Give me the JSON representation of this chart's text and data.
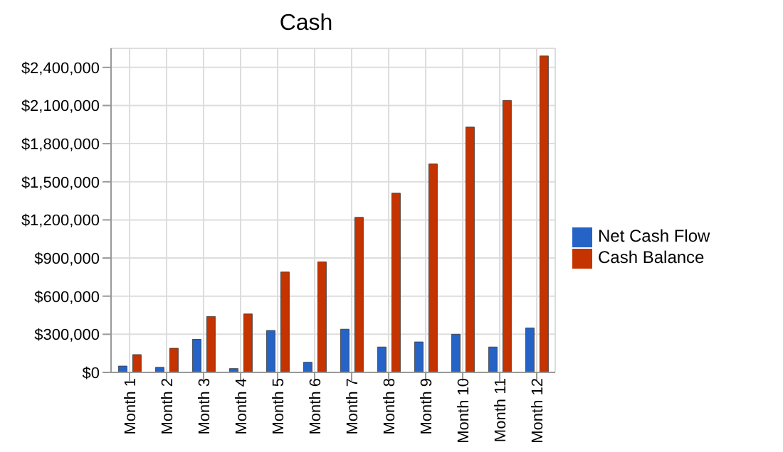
{
  "chart_data": {
    "type": "bar",
    "title": "Cash",
    "categories": [
      "Month 1",
      "Month 2",
      "Month 3",
      "Month 4",
      "Month 5",
      "Month 6",
      "Month 7",
      "Month 8",
      "Month 9",
      "Month 10",
      "Month 11",
      "Month 12"
    ],
    "series": [
      {
        "name": "Net Cash Flow",
        "color": "#2563c6",
        "values": [
          50000,
          40000,
          260000,
          30000,
          330000,
          80000,
          340000,
          200000,
          240000,
          300000,
          200000,
          350000
        ]
      },
      {
        "name": "Cash Balance",
        "color": "#c43300",
        "values": [
          140000,
          190000,
          440000,
          460000,
          790000,
          870000,
          1220000,
          1410000,
          1640000,
          1930000,
          2140000,
          2490000
        ]
      }
    ],
    "ylim": [
      0,
      2550000
    ],
    "yticks": [
      {
        "value": 0,
        "label": "$0"
      },
      {
        "value": 300000,
        "label": "$300,000"
      },
      {
        "value": 600000,
        "label": "$600,000"
      },
      {
        "value": 900000,
        "label": "$900,000"
      },
      {
        "value": 1200000,
        "label": "$1,200,000"
      },
      {
        "value": 1500000,
        "label": "$1,500,000"
      },
      {
        "value": 1800000,
        "label": "$1,800,000"
      },
      {
        "value": 2100000,
        "label": "$2,100,000"
      },
      {
        "value": 2400000,
        "label": "$2,400,000"
      }
    ],
    "grid": true,
    "legend": "right"
  }
}
